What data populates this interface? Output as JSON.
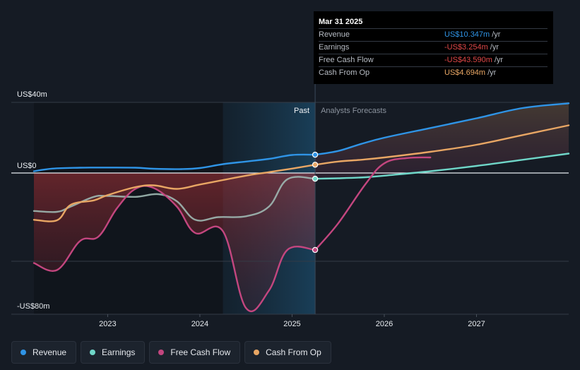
{
  "chart_data": {
    "type": "area",
    "xlim": [
      2022.2,
      2028.0
    ],
    "ylim": [
      -80,
      40
    ],
    "y_tick_labels": [
      {
        "value": 40,
        "label": "US$40m"
      },
      {
        "value": 0,
        "label": "US$0"
      },
      {
        "value": -80,
        "label": "-US$80m"
      }
    ],
    "x_tick_labels": [
      {
        "value": 2023,
        "label": "2023"
      },
      {
        "value": 2024,
        "label": "2024"
      },
      {
        "value": 2025,
        "label": "2025"
      },
      {
        "value": 2026,
        "label": "2026"
      },
      {
        "value": 2027,
        "label": "2027"
      }
    ],
    "gridlines": [
      40,
      0,
      -50
    ],
    "past_forecast_divider": 2025.25,
    "highlight_range": [
      2024.25,
      2025.25
    ],
    "past_label": "Past",
    "forecast_label": "Analysts Forecasts",
    "series": [
      {
        "key": "revenue",
        "name": "Revenue",
        "color": "#2f94e6",
        "points": [
          [
            2022.2,
            1.0
          ],
          [
            2022.4,
            2.5
          ],
          [
            2022.7,
            3.0
          ],
          [
            2023.0,
            3.1
          ],
          [
            2023.3,
            3.0
          ],
          [
            2023.5,
            2.4
          ],
          [
            2023.8,
            2.2
          ],
          [
            2024.0,
            2.8
          ],
          [
            2024.25,
            5.0
          ],
          [
            2024.5,
            6.5
          ],
          [
            2024.75,
            8.0
          ],
          [
            2025.0,
            10.2
          ],
          [
            2025.25,
            10.347
          ],
          [
            2025.5,
            12.5
          ],
          [
            2025.75,
            16.5
          ],
          [
            2026.0,
            20.0
          ],
          [
            2026.5,
            25.5
          ],
          [
            2027.0,
            31.0
          ],
          [
            2027.5,
            36.8
          ],
          [
            2028.0,
            39.5
          ]
        ]
      },
      {
        "key": "earnings",
        "name": "Earnings",
        "color": "#6fd6c8",
        "points": [
          [
            2022.2,
            -21.5
          ],
          [
            2022.45,
            -22.0
          ],
          [
            2022.6,
            -19.0
          ],
          [
            2022.85,
            -13.5
          ],
          [
            2023.0,
            -13.0
          ],
          [
            2023.3,
            -13.5
          ],
          [
            2023.55,
            -12.0
          ],
          [
            2023.75,
            -16.0
          ],
          [
            2023.95,
            -26.5
          ],
          [
            2024.2,
            -25.0
          ],
          [
            2024.5,
            -24.5
          ],
          [
            2024.75,
            -19.0
          ],
          [
            2024.95,
            -3.5
          ],
          [
            2025.25,
            -3.254
          ],
          [
            2025.5,
            -3.0
          ],
          [
            2025.8,
            -2.4
          ],
          [
            2026.0,
            -1.5
          ],
          [
            2026.5,
            1.0
          ],
          [
            2027.0,
            4.0
          ],
          [
            2027.5,
            7.5
          ],
          [
            2028.0,
            11.0
          ]
        ]
      },
      {
        "key": "free_cash_flow",
        "name": "Free Cash Flow",
        "color": "#c3467f",
        "points": [
          [
            2022.2,
            -51.0
          ],
          [
            2022.45,
            -55.0
          ],
          [
            2022.7,
            -38.5
          ],
          [
            2022.9,
            -36.0
          ],
          [
            2023.1,
            -20.0
          ],
          [
            2023.3,
            -9.0
          ],
          [
            2023.5,
            -8.5
          ],
          [
            2023.75,
            -19.0
          ],
          [
            2023.95,
            -34.0
          ],
          [
            2024.25,
            -33.0
          ],
          [
            2024.5,
            -76.5
          ],
          [
            2024.75,
            -66.5
          ],
          [
            2024.95,
            -43.5
          ],
          [
            2025.25,
            -43.59
          ],
          [
            2025.5,
            -28.5
          ],
          [
            2025.8,
            -6.0
          ],
          [
            2026.0,
            5.5
          ],
          [
            2026.25,
            8.5
          ],
          [
            2026.5,
            8.8
          ]
        ]
      },
      {
        "key": "cash_from_op",
        "name": "Cash From Op",
        "color": "#e8a664",
        "points": [
          [
            2022.2,
            -26.5
          ],
          [
            2022.45,
            -26.8
          ],
          [
            2022.6,
            -18.0
          ],
          [
            2022.85,
            -15.5
          ],
          [
            2023.0,
            -12.5
          ],
          [
            2023.3,
            -8.0
          ],
          [
            2023.5,
            -7.0
          ],
          [
            2023.75,
            -9.0
          ],
          [
            2024.0,
            -6.5
          ],
          [
            2024.25,
            -4.0
          ],
          [
            2024.5,
            -1.5
          ],
          [
            2024.75,
            0.5
          ],
          [
            2025.0,
            2.5
          ],
          [
            2025.25,
            4.694
          ],
          [
            2025.5,
            6.5
          ],
          [
            2025.75,
            7.5
          ],
          [
            2026.0,
            8.8
          ],
          [
            2026.5,
            12.0
          ],
          [
            2027.0,
            16.0
          ],
          [
            2027.5,
            21.5
          ],
          [
            2028.0,
            27.0
          ]
        ]
      }
    ]
  },
  "tooltip": {
    "date": "Mar 31 2025",
    "rows": [
      {
        "label": "Revenue",
        "value": "US$10.347m",
        "unit": "/yr",
        "color": "#2f94e6"
      },
      {
        "label": "Earnings",
        "value": "-US$3.254m",
        "unit": "/yr",
        "color": "#e04848"
      },
      {
        "label": "Free Cash Flow",
        "value": "-US$43.590m",
        "unit": "/yr",
        "color": "#e04848"
      },
      {
        "label": "Cash From Op",
        "value": "US$4.694m",
        "unit": "/yr",
        "color": "#e8a664"
      }
    ]
  },
  "legend": [
    {
      "label": "Revenue",
      "color": "#2f94e6"
    },
    {
      "label": "Earnings",
      "color": "#6fd6c8"
    },
    {
      "label": "Free Cash Flow",
      "color": "#c3467f"
    },
    {
      "label": "Cash From Op",
      "color": "#e8a664"
    }
  ]
}
